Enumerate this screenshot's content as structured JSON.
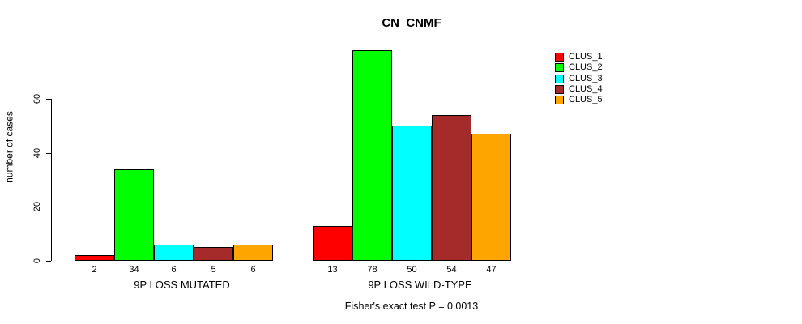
{
  "chart_data": {
    "type": "bar",
    "title": "CN_CNMF",
    "ylabel": "number of cases",
    "xlabel": "",
    "yticks": [
      0,
      20,
      40,
      60
    ],
    "ylim": [
      0,
      78
    ],
    "grid": false,
    "legend_position": "top-right",
    "bar_value_labels_shown": true,
    "categories": [
      "9P LOSS MUTATED",
      "9P LOSS WILD-TYPE"
    ],
    "series": [
      {
        "name": "CLUS_1",
        "color": "#FF0000",
        "values": [
          2,
          13
        ]
      },
      {
        "name": "CLUS_2",
        "color": "#00FF00",
        "values": [
          34,
          78
        ]
      },
      {
        "name": "CLUS_3",
        "color": "#00FFFF",
        "values": [
          6,
          50
        ]
      },
      {
        "name": "CLUS_4",
        "color": "#A52A2A",
        "values": [
          5,
          54
        ]
      },
      {
        "name": "CLUS_5",
        "color": "#FFA500",
        "values": [
          6,
          47
        ]
      }
    ],
    "footnote": "Fisher's exact test P = 0.0013"
  }
}
